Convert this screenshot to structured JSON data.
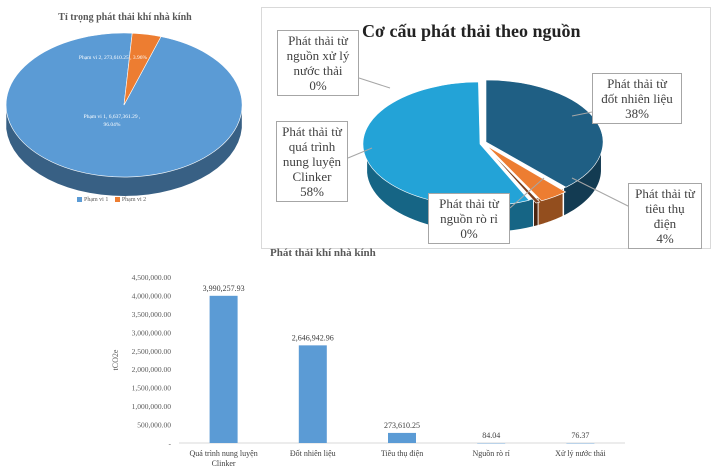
{
  "colors": {
    "scope1": "#5b9bd5",
    "scope2": "#ed7d31",
    "src_fuel": "#1f5f84",
    "src_clinker": "#23a3d7",
    "src_electric": "#ed7d31",
    "src_leak": "#7a3d1c",
    "src_water": "#6fb7e0",
    "bar": "#5b9bd5"
  },
  "chart_data": [
    {
      "type": "pie",
      "title": "Tỉ trọng phát thải khí nhà kính",
      "legend_position": "bottom",
      "slices": [
        {
          "name": "Phạm vi 1",
          "value": 6637361.29,
          "percent": 96.04,
          "label_line1": "Phạm vi 1, 6,637,361.29 ,",
          "label_line2": "96.04%"
        },
        {
          "name": "Phạm vi 2",
          "value": 273610.25,
          "percent": 3.96,
          "label_line1": "Phạm vi 2, 273,610.25 , 3.96%"
        }
      ],
      "legend": [
        "Phạm vi 1",
        "Phạm vi 2"
      ]
    },
    {
      "type": "pie",
      "title": "Cơ cấu phát thải theo nguồn",
      "slices": [
        {
          "name": "Phát thải từ đốt nhiên liệu",
          "percent": 38,
          "label_lines": [
            "Phát thải từ",
            "đốt nhiên liệu",
            "38%"
          ]
        },
        {
          "name": "Phát thải từ tiêu thụ điện",
          "percent": 4,
          "label_lines": [
            "Phát thải từ",
            "tiêu thụ điện",
            "4%"
          ]
        },
        {
          "name": "Phát thải từ nguồn rò rỉ",
          "percent": 0,
          "label_lines": [
            "Phát thải từ",
            "nguồn rò rỉ",
            "0%"
          ]
        },
        {
          "name": "Phát thải từ quá trình nung luyện Clinker",
          "percent": 58,
          "label_lines": [
            "Phát thải từ",
            "quá trình",
            "nung luyện",
            "Clinker",
            "58%"
          ]
        },
        {
          "name": "Phát thải từ nguồn xử lý nước thải",
          "percent": 0,
          "label_lines": [
            "Phát thải từ",
            "nguồn xử lý",
            "nước thải",
            "0%"
          ]
        }
      ]
    },
    {
      "type": "bar",
      "title": "Phát thải khí nhà kính",
      "xlabel": "",
      "ylabel": "tCO2e",
      "ylim": [
        0,
        4500000
      ],
      "yticks": [
        0,
        500000,
        1000000,
        1500000,
        2000000,
        2500000,
        3000000,
        3500000,
        4000000,
        4500000
      ],
      "ytick_labels": [
        "-",
        "500,000.00",
        "1,000,000.00",
        "1,500,000.00",
        "2,000,000.00",
        "2,500,000.00",
        "3,000,000.00",
        "3,500,000.00",
        "4,000,000.00",
        "4,500,000.00"
      ],
      "categories": [
        [
          "Quá trình nung luyện",
          "Clinker"
        ],
        [
          "Đốt nhiên liệu"
        ],
        [
          "Tiêu thụ điện"
        ],
        [
          "Nguồn rò rỉ"
        ],
        [
          "Xử lý nước thải"
        ]
      ],
      "values": [
        3990257.93,
        2646942.96,
        273610.25,
        84.04,
        76.37
      ],
      "value_labels": [
        "3,990,257.93",
        "2,646,942.96",
        "273,610.25",
        "84.04",
        "76.37"
      ]
    }
  ]
}
